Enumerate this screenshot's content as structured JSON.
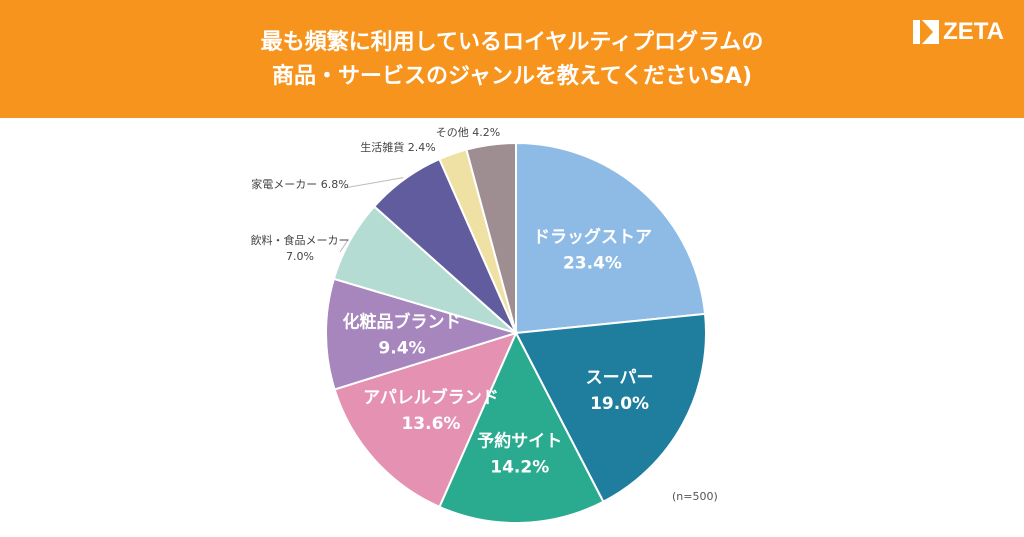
{
  "header": {
    "title_line1": "最も頻繁に利用しているロイヤルティプログラムの",
    "title_line2": "商品・サービスのジャンルを教えてくださいSA)",
    "logo_text": "ZETA",
    "background_color": "#f7941d"
  },
  "note": "(n=500)",
  "chart_data": {
    "type": "pie",
    "title": "最も頻繁に利用しているロイヤルティプログラムの商品・サービスのジャンルを教えてくださいSA)",
    "start": "12 o'clock",
    "direction": "clockwise",
    "slices": [
      {
        "label": "ドラッグストア",
        "value": 23.4,
        "value_label": "23.4%",
        "color": "#8ebbe5",
        "label_position": "inside"
      },
      {
        "label": "スーパー",
        "value": 19.0,
        "value_label": "19.0%",
        "color": "#1f7e9e",
        "label_position": "inside"
      },
      {
        "label": "予約サイト",
        "value": 14.2,
        "value_label": "14.2%",
        "color": "#2aaa8e",
        "label_position": "inside"
      },
      {
        "label": "アパレルブランド",
        "value": 13.6,
        "value_label": "13.6%",
        "color": "#e592b2",
        "label_position": "inside"
      },
      {
        "label": "化粧品ブランド",
        "value": 9.4,
        "value_label": "9.4%",
        "color": "#a686bd",
        "label_position": "inside"
      },
      {
        "label": "飲料・食品メーカー",
        "value": 7.0,
        "value_label": "7.0%",
        "color": "#b5dcd3",
        "label_position": "outside"
      },
      {
        "label": "家電メーカー",
        "value": 6.8,
        "value_label": "6.8%",
        "color": "#605c9e",
        "label_position": "outside"
      },
      {
        "label": "生活雑貨",
        "value": 2.4,
        "value_label": "2.4%",
        "color": "#efe1a3",
        "label_position": "outside"
      },
      {
        "label": "その他",
        "value": 4.2,
        "value_label": "4.2%",
        "color": "#9e8e91",
        "label_position": "outside"
      }
    ]
  }
}
